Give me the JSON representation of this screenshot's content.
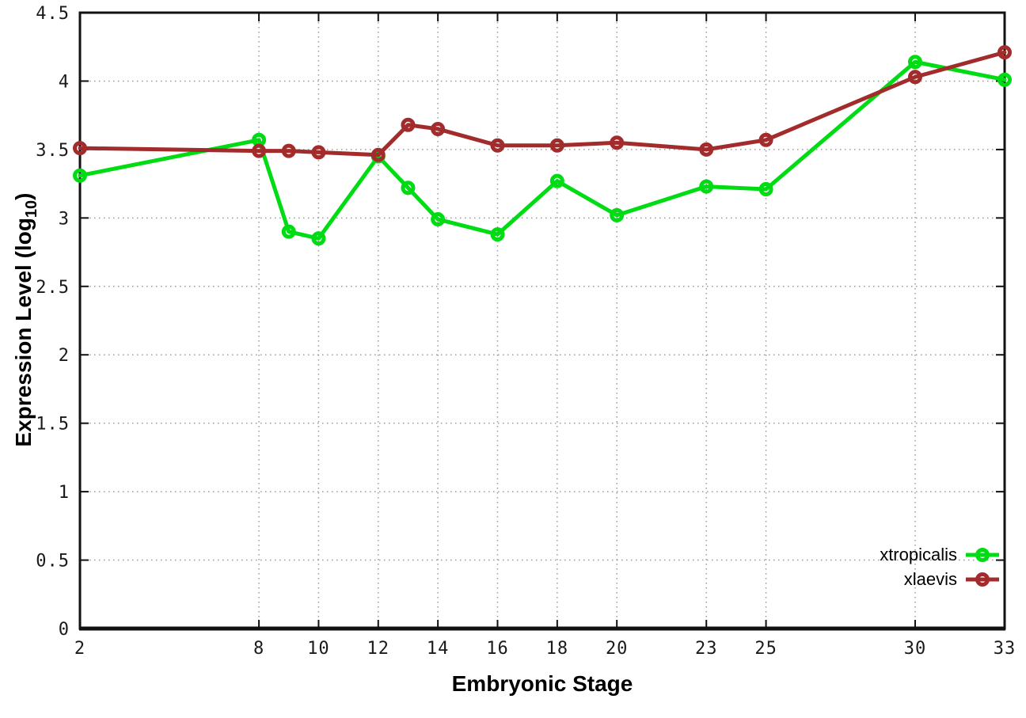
{
  "chart_data": {
    "type": "line",
    "title": "",
    "xlabel": "Embryonic Stage",
    "ylabel_prefix": "Expression Level (log",
    "ylabel_sub": "10",
    "ylabel_suffix": ")",
    "x": [
      2,
      8,
      9,
      10,
      12,
      13,
      14,
      16,
      18,
      20,
      23,
      25,
      30,
      33
    ],
    "xticks": [
      2,
      8,
      10,
      12,
      14,
      16,
      18,
      20,
      23,
      25,
      30,
      33
    ],
    "yticks": [
      0,
      0.5,
      1,
      1.5,
      2,
      2.5,
      3,
      3.5,
      4,
      4.5
    ],
    "xlim": [
      2,
      33
    ],
    "ylim": [
      0,
      4.5
    ],
    "grid": true,
    "legend_position": "bottom-right",
    "series": [
      {
        "name": "xtropicalis",
        "color": "#00dc14",
        "values": [
          3.31,
          3.57,
          2.9,
          2.85,
          3.45,
          3.22,
          2.99,
          2.88,
          3.27,
          3.02,
          3.23,
          3.21,
          4.14,
          4.01
        ]
      },
      {
        "name": "xlaevis",
        "color": "#a22c2c",
        "values": [
          3.51,
          3.49,
          3.49,
          3.48,
          3.46,
          3.68,
          3.65,
          3.53,
          3.53,
          3.55,
          3.5,
          3.57,
          4.03,
          4.21
        ]
      }
    ],
    "colors": {
      "background": "#ffffff",
      "grid": "#9a9a9a",
      "axis": "#111111"
    }
  }
}
